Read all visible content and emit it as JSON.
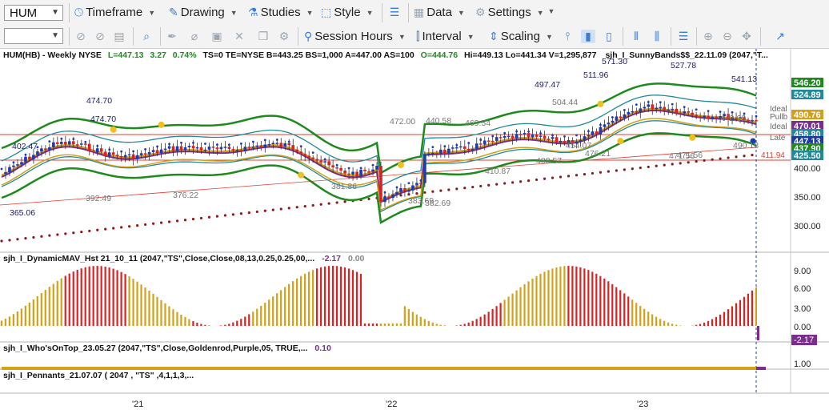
{
  "toolbar1": {
    "symbol": "HUM",
    "timeframe": "Timeframe",
    "drawing": "Drawing",
    "studies": "Studies",
    "style": "Style",
    "data": "Data",
    "settings": "Settings"
  },
  "toolbar2": {
    "session_hours": "Session Hours",
    "interval": "Interval",
    "scaling": "Scaling"
  },
  "main_pane": {
    "header": {
      "symbol": "HUM(HB) - Weekly  NYSE",
      "last": "L=447.13",
      "change": "3.27",
      "change_pct": "0.74%",
      "rest": "TS=0  TE=NYSE  B=443.25  BS=1,000  A=447.00  AS=100",
      "open": "O=444.76",
      "hilo": "Hi=449.13  Lo=441.34  V=1,295,877",
      "study": "sjh_I_SunnyBands$$_22.11.09 (2047,\"T..."
    },
    "y_ticks": [
      "400.00",
      "350.00",
      "300.00"
    ],
    "price_badges": [
      {
        "text": "546.20",
        "color": "#1e8a1e"
      },
      {
        "text": "524.89",
        "color": "#1e8a9a"
      },
      {
        "text": "490.76",
        "color": "#d4a017"
      },
      {
        "text": "470.01",
        "color": "#7b2d8e"
      },
      {
        "text": "458.80",
        "color": "#1e8a9a"
      },
      {
        "text": "447.13",
        "color": "#1a3a9e"
      },
      {
        "text": "437.90",
        "color": "#1e8a1e"
      },
      {
        "text": "425.50",
        "color": "#1e8a9a"
      }
    ],
    "side_labels": [
      "Ideal",
      "Pullb",
      "Ideal",
      "Late"
    ],
    "right_price_red": "411.94",
    "annotations": [
      "474.70",
      "474.70",
      "402.47",
      "392.49",
      "365.06",
      "376.22",
      "381.86",
      "472.00",
      "440.58",
      "469.54",
      "383.69",
      "382.69",
      "410.87",
      "454.07",
      "476.21",
      "488.57",
      "497.47",
      "511.96",
      "571.30",
      "527.78",
      "541.13",
      "490.18",
      "471.56",
      "471.56",
      "504.44",
      "442.68"
    ]
  },
  "histogram_pane": {
    "header": "sjh_I_DynamicMAV_Hst 21_10_11 (2047,\"TS\",Close,Close,08,13,0.25,0.25,00,...",
    "value1": "-2.17",
    "value2": "0.00",
    "y_ticks": [
      "9.00",
      "6.00",
      "3.00",
      "0.00"
    ],
    "badge": "-2.17"
  },
  "whos_on_top_pane": {
    "header": "sjh_I_Who'sOnTop_23.05.27 (2047,\"TS\",Close,Goldenrod,Purple,05,  TRUE,...",
    "value": "0.10",
    "y_ticks": [
      "1.00"
    ]
  },
  "pennants_pane": {
    "header": "sjh_I_Pennants_21.07.07 ( 2047 , \"TS\" ,4,1,1,3,..."
  },
  "x_axis": [
    "'21",
    "'22",
    "'23"
  ]
}
